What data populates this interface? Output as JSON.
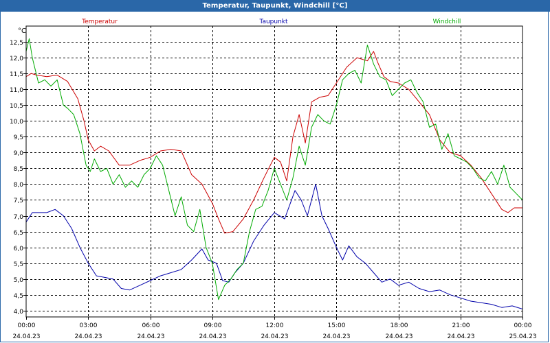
{
  "window": {
    "title": "Temperatur, Taupunkt, Windchill [°C]"
  },
  "chart_data": {
    "type": "line",
    "title": "Temperatur, Taupunkt, Windchill [°C]",
    "ylabel": "°C",
    "xlabel": "",
    "ylim": [
      3.8,
      13.0
    ],
    "xlim": [
      0,
      24
    ],
    "grid": true,
    "legend_placement": "top",
    "y_ticks": [
      "4,0",
      "4,5",
      "5,0",
      "5,5",
      "6,0",
      "6,5",
      "7,0",
      "7,5",
      "8,0",
      "8,5",
      "9,0",
      "9,5",
      "10,0",
      "10,5",
      "11,0",
      "11,5",
      "12,0",
      "12,5"
    ],
    "x_ticks": [
      {
        "time": "00:00",
        "date": "24.04.23"
      },
      {
        "time": "03:00",
        "date": "24.04.23"
      },
      {
        "time": "06:00",
        "date": "24.04.23"
      },
      {
        "time": "09:00",
        "date": "24.04.23"
      },
      {
        "time": "12:00",
        "date": "24.04.23"
      },
      {
        "time": "15:00",
        "date": "24.04.23"
      },
      {
        "time": "18:00",
        "date": "24.04.23"
      },
      {
        "time": "21:00",
        "date": "24.04.23"
      },
      {
        "time": "00:00",
        "date": "25.04.23"
      }
    ],
    "series": [
      {
        "name": "Temperatur",
        "color": "#cc0000",
        "legend_align": "left",
        "x": [
          0,
          0.25,
          0.5,
          1.0,
          1.5,
          2.0,
          2.5,
          2.8,
          3.0,
          3.3,
          3.6,
          4.0,
          4.5,
          5.0,
          5.5,
          6.0,
          6.5,
          7.0,
          7.5,
          8.0,
          8.5,
          9.0,
          9.3,
          9.6,
          10.0,
          10.5,
          11.0,
          11.5,
          12.0,
          12.3,
          12.6,
          12.9,
          13.2,
          13.5,
          13.8,
          14.2,
          14.6,
          15.0,
          15.5,
          16.0,
          16.5,
          16.8,
          17.0,
          17.3,
          17.6,
          18.0,
          18.5,
          19.0,
          19.5,
          20.0,
          20.5,
          21.0,
          21.5,
          22.0,
          22.5,
          23.0,
          23.3,
          23.6,
          24.0
        ],
        "values": [
          11.4,
          11.5,
          11.45,
          11.4,
          11.45,
          11.25,
          10.7,
          10.0,
          9.4,
          9.05,
          9.2,
          9.05,
          8.6,
          8.6,
          8.75,
          8.85,
          9.05,
          9.1,
          9.05,
          8.3,
          8.0,
          7.4,
          6.9,
          6.45,
          6.5,
          6.9,
          7.5,
          8.2,
          8.85,
          8.7,
          8.1,
          9.5,
          10.2,
          9.3,
          10.6,
          10.75,
          10.8,
          11.2,
          11.7,
          12.0,
          11.9,
          12.2,
          11.85,
          11.4,
          11.25,
          11.2,
          11.0,
          10.6,
          10.2,
          9.4,
          9.0,
          8.9,
          8.6,
          8.2,
          7.7,
          7.2,
          7.1,
          7.25,
          7.25
        ]
      },
      {
        "name": "Taupunkt",
        "color": "#0000aa",
        "legend_align": "center",
        "x": [
          0,
          0.3,
          0.6,
          1.0,
          1.4,
          1.8,
          2.2,
          2.6,
          3.0,
          3.4,
          3.8,
          4.2,
          4.6,
          5.0,
          5.5,
          6.0,
          6.5,
          7.0,
          7.5,
          8.0,
          8.5,
          8.8,
          9.2,
          9.5,
          9.8,
          10.1,
          10.5,
          11.0,
          11.5,
          12.0,
          12.5,
          13.0,
          13.3,
          13.6,
          14.0,
          14.3,
          14.6,
          15.0,
          15.3,
          15.6,
          16.0,
          16.4,
          16.8,
          17.2,
          17.6,
          18.0,
          18.5,
          19.0,
          19.5,
          20.0,
          20.5,
          21.0,
          21.5,
          22.0,
          22.5,
          23.0,
          23.5,
          24.0
        ],
        "values": [
          6.8,
          7.1,
          7.1,
          7.1,
          7.2,
          7.0,
          6.6,
          6.0,
          5.5,
          5.1,
          5.05,
          5.0,
          4.7,
          4.65,
          4.8,
          4.95,
          5.1,
          5.2,
          5.3,
          5.6,
          5.95,
          5.6,
          5.5,
          4.95,
          4.9,
          5.2,
          5.5,
          6.2,
          6.7,
          7.1,
          6.9,
          7.8,
          7.5,
          7.0,
          8.0,
          7.0,
          6.6,
          6.0,
          5.6,
          6.05,
          5.7,
          5.5,
          5.2,
          4.9,
          5.0,
          4.8,
          4.9,
          4.7,
          4.6,
          4.65,
          4.5,
          4.4,
          4.3,
          4.25,
          4.2,
          4.1,
          4.15,
          4.05
        ]
      },
      {
        "name": "Windchill",
        "color": "#00aa00",
        "legend_align": "right",
        "x": [
          0,
          0.15,
          0.3,
          0.6,
          0.9,
          1.2,
          1.5,
          1.8,
          2.0,
          2.3,
          2.6,
          2.9,
          3.1,
          3.3,
          3.6,
          3.9,
          4.2,
          4.5,
          4.8,
          5.1,
          5.4,
          5.7,
          6.0,
          6.3,
          6.6,
          6.9,
          7.2,
          7.5,
          7.8,
          8.1,
          8.4,
          8.7,
          9.0,
          9.3,
          9.6,
          9.9,
          10.2,
          10.5,
          10.8,
          11.1,
          11.4,
          11.7,
          12.0,
          12.3,
          12.6,
          12.9,
          13.2,
          13.5,
          13.8,
          14.1,
          14.4,
          14.7,
          15.0,
          15.3,
          15.6,
          15.9,
          16.2,
          16.5,
          16.8,
          17.1,
          17.4,
          17.7,
          18.0,
          18.3,
          18.6,
          18.9,
          19.2,
          19.5,
          19.8,
          20.1,
          20.4,
          20.7,
          21.0,
          21.3,
          21.6,
          21.9,
          22.2,
          22.5,
          22.8,
          23.1,
          23.4,
          23.7,
          24.0
        ],
        "values": [
          12.2,
          12.6,
          12.0,
          11.2,
          11.3,
          11.1,
          11.3,
          10.5,
          10.4,
          10.2,
          9.6,
          8.6,
          8.4,
          8.8,
          8.4,
          8.5,
          8.0,
          8.3,
          7.9,
          8.1,
          7.9,
          8.3,
          8.5,
          8.9,
          8.6,
          7.8,
          7.0,
          7.6,
          6.7,
          6.5,
          7.2,
          6.0,
          5.5,
          4.35,
          4.8,
          5.0,
          5.3,
          5.5,
          6.5,
          7.2,
          7.3,
          7.8,
          8.5,
          8.0,
          7.5,
          8.2,
          9.2,
          8.6,
          9.8,
          10.2,
          10.0,
          9.9,
          10.5,
          11.3,
          11.5,
          11.6,
          11.2,
          12.4,
          11.8,
          11.4,
          11.3,
          10.8,
          11.0,
          11.2,
          11.3,
          10.9,
          10.6,
          9.8,
          9.9,
          9.1,
          9.6,
          8.9,
          8.8,
          8.7,
          8.5,
          8.2,
          8.1,
          8.4,
          8.0,
          8.6,
          7.9,
          7.7,
          7.5
        ]
      }
    ]
  }
}
